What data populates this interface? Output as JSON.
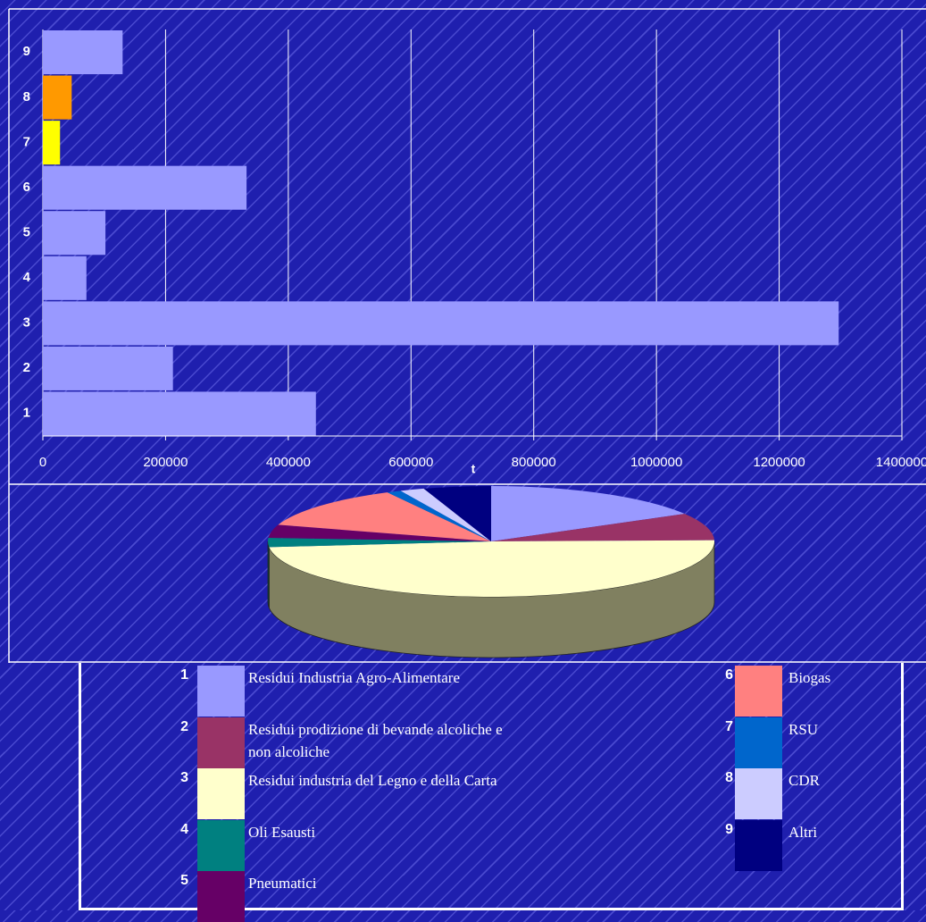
{
  "chart_data": [
    {
      "type": "bar",
      "orientation": "horizontal",
      "categories": [
        "1",
        "2",
        "3",
        "4",
        "5",
        "6",
        "7",
        "8",
        "9"
      ],
      "values": [
        445000,
        212000,
        1297000,
        71000,
        102000,
        332000,
        28000,
        47000,
        130000
      ],
      "colors": [
        "#9999ff",
        "#9999ff",
        "#9999ff",
        "#9999ff",
        "#9999ff",
        "#9999ff",
        "#ffff00",
        "#ff9900",
        "#9999ff"
      ],
      "xlabel": "t",
      "xlim": [
        0,
        1400000
      ],
      "xticks": [
        0,
        200000,
        400000,
        600000,
        800000,
        1000000,
        1200000,
        1400000
      ],
      "grid": true
    },
    {
      "type": "pie",
      "3d": true,
      "labels": [
        "1",
        "2",
        "3",
        "4",
        "5",
        "6",
        "7",
        "8",
        "9"
      ],
      "categories": [
        "Residui Industria Agro-Alimentare",
        "Residui prodizione di bevande alcoliche e non alcoliche",
        "Residui industria del Legno e della Carta",
        "Oli Esausti",
        "Pneumatici",
        "Biogas",
        "RSU",
        "CDR",
        "Altri"
      ],
      "values": [
        445000,
        212000,
        1297000,
        71000,
        102000,
        332000,
        28000,
        47000,
        130000
      ],
      "colors": [
        "#9999ff",
        "#993366",
        "#ffffcc",
        "#008080",
        "#660066",
        "#ff8080",
        "#0066cc",
        "#ccccff",
        "#000080"
      ]
    }
  ]
}
